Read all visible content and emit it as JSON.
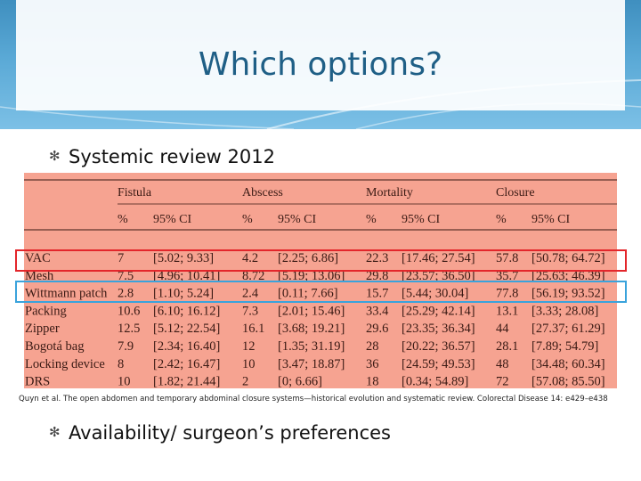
{
  "slide": {
    "title": "Which options?"
  },
  "bullets": [
    {
      "text": "Systemic review 2012"
    },
    {
      "text": "Availability/ surgeon’s preferences"
    }
  ],
  "table": {
    "groups": [
      "Fistula",
      "Abscess",
      "Mortality",
      "Closure"
    ],
    "subheaders": [
      "%",
      "95% CI",
      "%",
      "95% CI",
      "%",
      "95% CI",
      "%",
      "95% CI"
    ],
    "rows": [
      {
        "name": "VAC",
        "cells": [
          "7",
          "[5.02; 9.33]",
          "4.2",
          "[2.25; 6.86]",
          "22.3",
          "[17.46; 27.54]",
          "57.8",
          "[50.78; 64.72]"
        ]
      },
      {
        "name": "Mesh",
        "cells": [
          "7.5",
          "[4.96; 10.41]",
          "8.72",
          "[5.19; 13.06]",
          "29.8",
          "[23.57; 36.50]",
          "35.7",
          "[25.63; 46.39]"
        ]
      },
      {
        "name": "Wittmann patch",
        "cells": [
          "2.8",
          "[1.10; 5.24]",
          "2.4",
          "[0.11; 7.66]",
          "15.7",
          "[5.44; 30.04]",
          "77.8",
          "[56.19; 93.52]"
        ]
      },
      {
        "name": "Packing",
        "cells": [
          "10.6",
          "[6.10; 16.12]",
          "7.3",
          "[2.01; 15.46]",
          "33.4",
          "[25.29; 42.14]",
          "13.1",
          "[3.33; 28.08]"
        ]
      },
      {
        "name": "Zipper",
        "cells": [
          "12.5",
          "[5.12; 22.54]",
          "16.1",
          "[3.68; 19.21]",
          "29.6",
          "[23.35; 36.34]",
          "44",
          "[27.37; 61.29]"
        ]
      },
      {
        "name": "Bogotá bag",
        "cells": [
          "7.9",
          "[2.34; 16.40]",
          "12",
          "[1.35; 31.19]",
          "28",
          "[20.22; 36.57]",
          "28.1",
          "[7.89; 54.79]"
        ]
      },
      {
        "name": "Locking device",
        "cells": [
          "8",
          "[2.42; 16.47]",
          "10",
          "[3.47; 18.87]",
          "36",
          "[24.59; 49.53]",
          "48",
          "[34.48; 60.34]"
        ]
      },
      {
        "name": "DRS",
        "cells": [
          "10",
          "[1.82; 21.44]",
          "2",
          "[0; 6.66]",
          "18",
          "[0.34; 54.89]",
          "72",
          "[57.08; 85.50]"
        ]
      }
    ]
  },
  "caption": "Quyn et al. The open abdomen and temporary abdominal closure systems—historical evolution and systematic review. Colorectal Disease 14: e429–e438",
  "colors": {
    "highlight_vac": "#e3262b",
    "highlight_wittmann": "#3aa3dc"
  }
}
